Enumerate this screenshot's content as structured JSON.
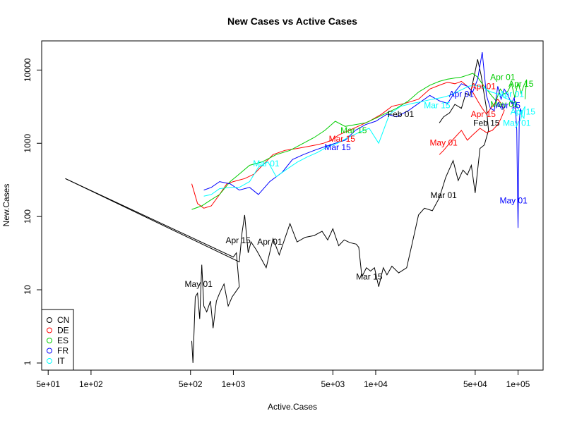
{
  "chart_data": {
    "type": "line",
    "title": "New Cases vs Active Cases",
    "xlabel": "Active.Cases",
    "ylabel": "New.Cases",
    "xscale": "log",
    "yscale": "log",
    "xlim": [
      45,
      150000
    ],
    "ylim": [
      0.8,
      25000
    ],
    "xticks": [
      {
        "value": 50,
        "label": "5e+01"
      },
      {
        "value": 100,
        "label": "1e+02"
      },
      {
        "value": 500,
        "label": "5e+02"
      },
      {
        "value": 1000,
        "label": "1e+03"
      },
      {
        "value": 5000,
        "label": "5e+03"
      },
      {
        "value": 10000,
        "label": "1e+04"
      },
      {
        "value": 50000,
        "label": "5e+04"
      },
      {
        "value": 100000,
        "label": "1e+05"
      }
    ],
    "yticks": [
      {
        "value": 1,
        "label": "1"
      },
      {
        "value": 10,
        "label": "10"
      },
      {
        "value": 100,
        "label": "100"
      },
      {
        "value": 1000,
        "label": "1000"
      },
      {
        "value": 10000,
        "label": "10000"
      }
    ],
    "legend": {
      "position": "bottom-left",
      "marker": "circle"
    },
    "series": [
      {
        "name": "CN",
        "color": "#000000",
        "x": [
          66,
          1100,
          1150,
          1200,
          1270,
          1330,
          1450,
          1700,
          1900,
          2100,
          2500,
          2800,
          3200,
          3700,
          4200,
          4600,
          5000,
          5500,
          6000,
          6600,
          7300,
          7600,
          8000,
          8600,
          9200,
          9800,
          10500,
          11300,
          12000,
          13000,
          14500,
          16500,
          18000,
          20000,
          22000,
          25000,
          28000,
          31000,
          35000,
          38000,
          41000,
          44000,
          47000,
          50000,
          54000,
          58000,
          62000,
          60000,
          57000,
          55000,
          52000,
          49000,
          46000,
          43000,
          40000,
          36000,
          33000,
          30000,
          28000
        ],
        "y": [
          330,
          24,
          60,
          105,
          32,
          45,
          35,
          20,
          50,
          30,
          80,
          45,
          52,
          55,
          63,
          48,
          68,
          40,
          48,
          44,
          42,
          38,
          15,
          20,
          18,
          20,
          11,
          20,
          16,
          21,
          17,
          20,
          42,
          105,
          130,
          120,
          180,
          340,
          580,
          310,
          430,
          370,
          500,
          210,
          850,
          950,
          1500,
          3000,
          5500,
          8500,
          14000,
          8000,
          4500,
          4800,
          3000,
          3400,
          2600,
          2300,
          1900
        ]
      },
      {
        "name": "CN",
        "color": "#000000",
        "x": [
          66,
          1000,
          1050,
          1100,
          980,
          920,
          860,
          800,
          760,
          720,
          690,
          650,
          620,
          600,
          580,
          560,
          540,
          520,
          510
        ],
        "y": [
          330,
          28,
          32,
          11,
          8,
          6,
          12,
          9,
          7,
          3,
          7,
          5,
          6,
          22,
          4,
          9,
          8,
          1,
          2
        ]
      },
      {
        "name": "DE",
        "color": "#ff0000",
        "x": [
          510,
          560,
          620,
          700,
          800,
          900,
          1000,
          1200,
          1400,
          1600,
          1900,
          2300,
          2800,
          3300,
          3800,
          4300,
          4900,
          5500,
          6500,
          7500,
          9000,
          11000,
          13000,
          16000,
          20000,
          24000,
          28000,
          32000,
          36000,
          40000,
          44000,
          48000,
          52000,
          56000,
          60000,
          66000,
          72000,
          76000,
          80000,
          76000,
          72000,
          66000,
          60000,
          54000,
          48000,
          44000,
          40000,
          36000,
          33000,
          30000,
          28000
        ],
        "y": [
          280,
          150,
          130,
          140,
          200,
          280,
          300,
          330,
          380,
          500,
          700,
          800,
          850,
          900,
          950,
          1000,
          1100,
          1300,
          1500,
          1700,
          2000,
          2500,
          3200,
          3500,
          4000,
          5500,
          6200,
          6800,
          6500,
          7000,
          6000,
          5000,
          3800,
          3000,
          2500,
          3200,
          4000,
          3500,
          2800,
          2200,
          1800,
          1500,
          1400,
          1600,
          1300,
          1100,
          1500,
          1200,
          1000,
          800,
          700
        ]
      },
      {
        "name": "ES",
        "color": "#00cd00",
        "x": [
          510,
          600,
          700,
          800,
          950,
          1100,
          1300,
          1600,
          2000,
          2500,
          3100,
          3700,
          4400,
          5200,
          6100,
          7200,
          8500,
          10000,
          12000,
          14000,
          17000,
          20000,
          24000,
          28000,
          32000,
          36000,
          40000,
          44000,
          48000,
          52000,
          56000,
          60000,
          65000,
          70000,
          75000,
          80000,
          85000,
          90000,
          95000,
          100000,
          105000,
          110000,
          115000,
          112000
        ],
        "y": [
          125,
          140,
          170,
          200,
          300,
          380,
          500,
          560,
          700,
          800,
          1000,
          1200,
          1500,
          2000,
          1700,
          1800,
          1900,
          2200,
          2600,
          3000,
          3800,
          5000,
          6200,
          7000,
          7500,
          7800,
          8000,
          8500,
          9000,
          8000,
          6500,
          5500,
          4500,
          3800,
          5500,
          4700,
          5200,
          6500,
          4200,
          6800,
          4800,
          6200,
          7400,
          4000
        ]
      },
      {
        "name": "FR",
        "color": "#0000ff",
        "x": [
          620,
          700,
          800,
          950,
          1100,
          1300,
          1500,
          1800,
          2200,
          2600,
          3100,
          3700,
          4400,
          5200,
          6100,
          7200,
          8500,
          10000,
          12000,
          14000,
          17000,
          20000,
          24000,
          28000,
          32000,
          36000,
          40000,
          44000,
          48000,
          52000,
          56000,
          60000,
          64000,
          68000,
          72000,
          76000,
          80000,
          85000,
          90000,
          94000,
          96000,
          98000,
          100000,
          102000,
          104000,
          106000
        ],
        "y": [
          230,
          250,
          300,
          280,
          230,
          250,
          200,
          300,
          400,
          600,
          700,
          800,
          900,
          1000,
          1100,
          1500,
          1800,
          2000,
          2500,
          2300,
          2800,
          3500,
          4500,
          3800,
          3500,
          5000,
          6500,
          6000,
          5000,
          7500,
          17500,
          4500,
          3000,
          2800,
          6000,
          4000,
          5500,
          4500,
          3500,
          4200,
          3000,
          1500,
          70,
          2000,
          3000,
          2500
        ]
      },
      {
        "name": "IT",
        "color": "#00ffff",
        "x": [
          620,
          700,
          800,
          950,
          1100,
          1300,
          1500,
          1750,
          2000,
          2400,
          2800,
          3300,
          3900,
          4600,
          5400,
          6400,
          7600,
          9000,
          10500,
          12500,
          15000,
          18000,
          21000,
          25000,
          29000,
          33000,
          37000,
          41000,
          45000,
          49000,
          53000,
          57000,
          61000,
          65000,
          70000,
          75000,
          80000,
          85000,
          90000,
          95000,
          100000,
          105000,
          110000,
          112000,
          108000,
          104000
        ],
        "y": [
          190,
          200,
          240,
          250,
          250,
          300,
          470,
          560,
          350,
          450,
          550,
          650,
          750,
          900,
          1000,
          1200,
          1400,
          1600,
          1000,
          2500,
          3200,
          3500,
          3700,
          4000,
          4200,
          4500,
          5000,
          5500,
          6000,
          6200,
          6000,
          5800,
          5300,
          5000,
          4800,
          4600,
          4200,
          4000,
          3800,
          3500,
          3000,
          2500,
          2200,
          3200,
          2800,
          2000
        ]
      }
    ],
    "annotations": [
      {
        "text": "Feb 01",
        "x": 15000,
        "y": 2500,
        "color": "#000000"
      },
      {
        "text": "Feb 15",
        "x": 60000,
        "y": 1900,
        "color": "#000000"
      },
      {
        "text": "Mar 01",
        "x": 30000,
        "y": 195,
        "color": "#000000"
      },
      {
        "text": "Mar 15",
        "x": 9000,
        "y": 15,
        "color": "#000000"
      },
      {
        "text": "Apr 01",
        "x": 1800,
        "y": 45,
        "color": "#000000"
      },
      {
        "text": "Apr 15",
        "x": 1080,
        "y": 47,
        "color": "#000000"
      },
      {
        "text": "May 01",
        "x": 570,
        "y": 12,
        "color": "#000000"
      },
      {
        "text": "Mar 15",
        "x": 5800,
        "y": 1150,
        "color": "#ff0000"
      },
      {
        "text": "Apr 01",
        "x": 57000,
        "y": 6000,
        "color": "#ff0000"
      },
      {
        "text": "Apr 15",
        "x": 57000,
        "y": 2500,
        "color": "#ff0000"
      },
      {
        "text": "May 01",
        "x": 30000,
        "y": 1020,
        "color": "#ff0000"
      },
      {
        "text": "Mar 15",
        "x": 7000,
        "y": 1500,
        "color": "#00cd00"
      },
      {
        "text": "Apr 01",
        "x": 78000,
        "y": 8000,
        "color": "#00cd00"
      },
      {
        "text": "Apr 15",
        "x": 105000,
        "y": 6500,
        "color": "#00cd00"
      },
      {
        "text": "May 01",
        "x": 80000,
        "y": 3400,
        "color": "#00cd00"
      },
      {
        "text": "Mar 15",
        "x": 5400,
        "y": 880,
        "color": "#0000ff"
      },
      {
        "text": "Apr 01",
        "x": 40000,
        "y": 4700,
        "color": "#0000ff"
      },
      {
        "text": "Apr 15",
        "x": 85000,
        "y": 3300,
        "color": "#0000ff"
      },
      {
        "text": "May 01",
        "x": 93000,
        "y": 165,
        "color": "#0000ff"
      },
      {
        "text": "Mar 01",
        "x": 1700,
        "y": 530,
        "color": "#00ffff"
      },
      {
        "text": "Mar 15",
        "x": 27000,
        "y": 3300,
        "color": "#00ffff"
      },
      {
        "text": "Apr 01",
        "x": 90000,
        "y": 4700,
        "color": "#00ffff"
      },
      {
        "text": "Apr 15",
        "x": 108000,
        "y": 2700,
        "color": "#00ffff"
      },
      {
        "text": "May 01",
        "x": 98000,
        "y": 1900,
        "color": "#00ffff"
      }
    ]
  }
}
